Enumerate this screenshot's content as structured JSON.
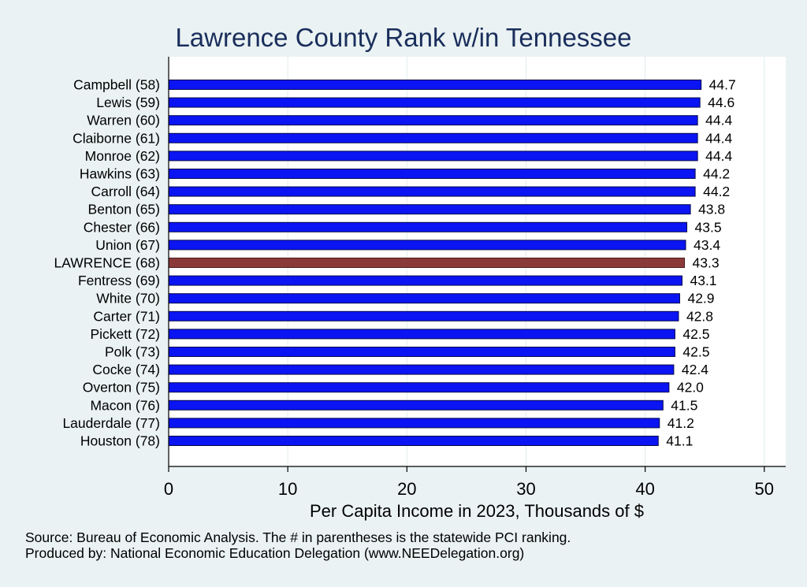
{
  "chart_data": {
    "type": "bar",
    "orientation": "horizontal",
    "title": "Lawrence County Rank w/in Tennessee",
    "xlabel": "Per Capita Income in 2023, Thousands of $",
    "ylabel": "",
    "xlim": [
      0,
      51.8
    ],
    "xticks": [
      0,
      10,
      20,
      30,
      40,
      50
    ],
    "grid": "vertical",
    "categories": [
      "Campbell (58)",
      "Lewis (59)",
      "Warren (60)",
      "Claiborne (61)",
      "Monroe (62)",
      "Hawkins (63)",
      "Carroll (64)",
      "Benton (65)",
      "Chester (66)",
      "Union (67)",
      "LAWRENCE (68)",
      "Fentress (69)",
      "White (70)",
      "Carter (71)",
      "Pickett (72)",
      "Polk (73)",
      "Cocke (74)",
      "Overton (75)",
      "Macon (76)",
      "Lauderdale (77)",
      "Houston (78)"
    ],
    "values": [
      44.7,
      44.6,
      44.4,
      44.4,
      44.4,
      44.2,
      44.2,
      43.8,
      43.5,
      43.4,
      43.3,
      43.1,
      42.9,
      42.8,
      42.5,
      42.5,
      42.4,
      42.0,
      41.5,
      41.2,
      41.1
    ],
    "value_labels": [
      "44.7",
      "44.6",
      "44.4",
      "44.4",
      "44.4",
      "44.2",
      "44.2",
      "43.8",
      "43.5",
      "43.4",
      "43.3",
      "43.1",
      "42.9",
      "42.8",
      "42.5",
      "42.5",
      "42.4",
      "42.0",
      "41.5",
      "41.2",
      "41.1"
    ],
    "highlight_category": "LAWRENCE (68)",
    "colors": {
      "bar": "#0b14f2",
      "bar_edge": "#05094a",
      "highlight": "#8b3a3a",
      "highlight_edge": "#4a1a1a",
      "title": "#1a2e5c",
      "plot_background": "#ffffff",
      "figure_background": "#eaf2f3",
      "grid": "#e6eef0"
    }
  },
  "notes": {
    "source": "Source: Bureau of Economic Analysis. The # in parentheses is the statewide PCI ranking.",
    "produced_by": "Produced by: National Economic Education Delegation (www.NEEDelegation.org)"
  }
}
